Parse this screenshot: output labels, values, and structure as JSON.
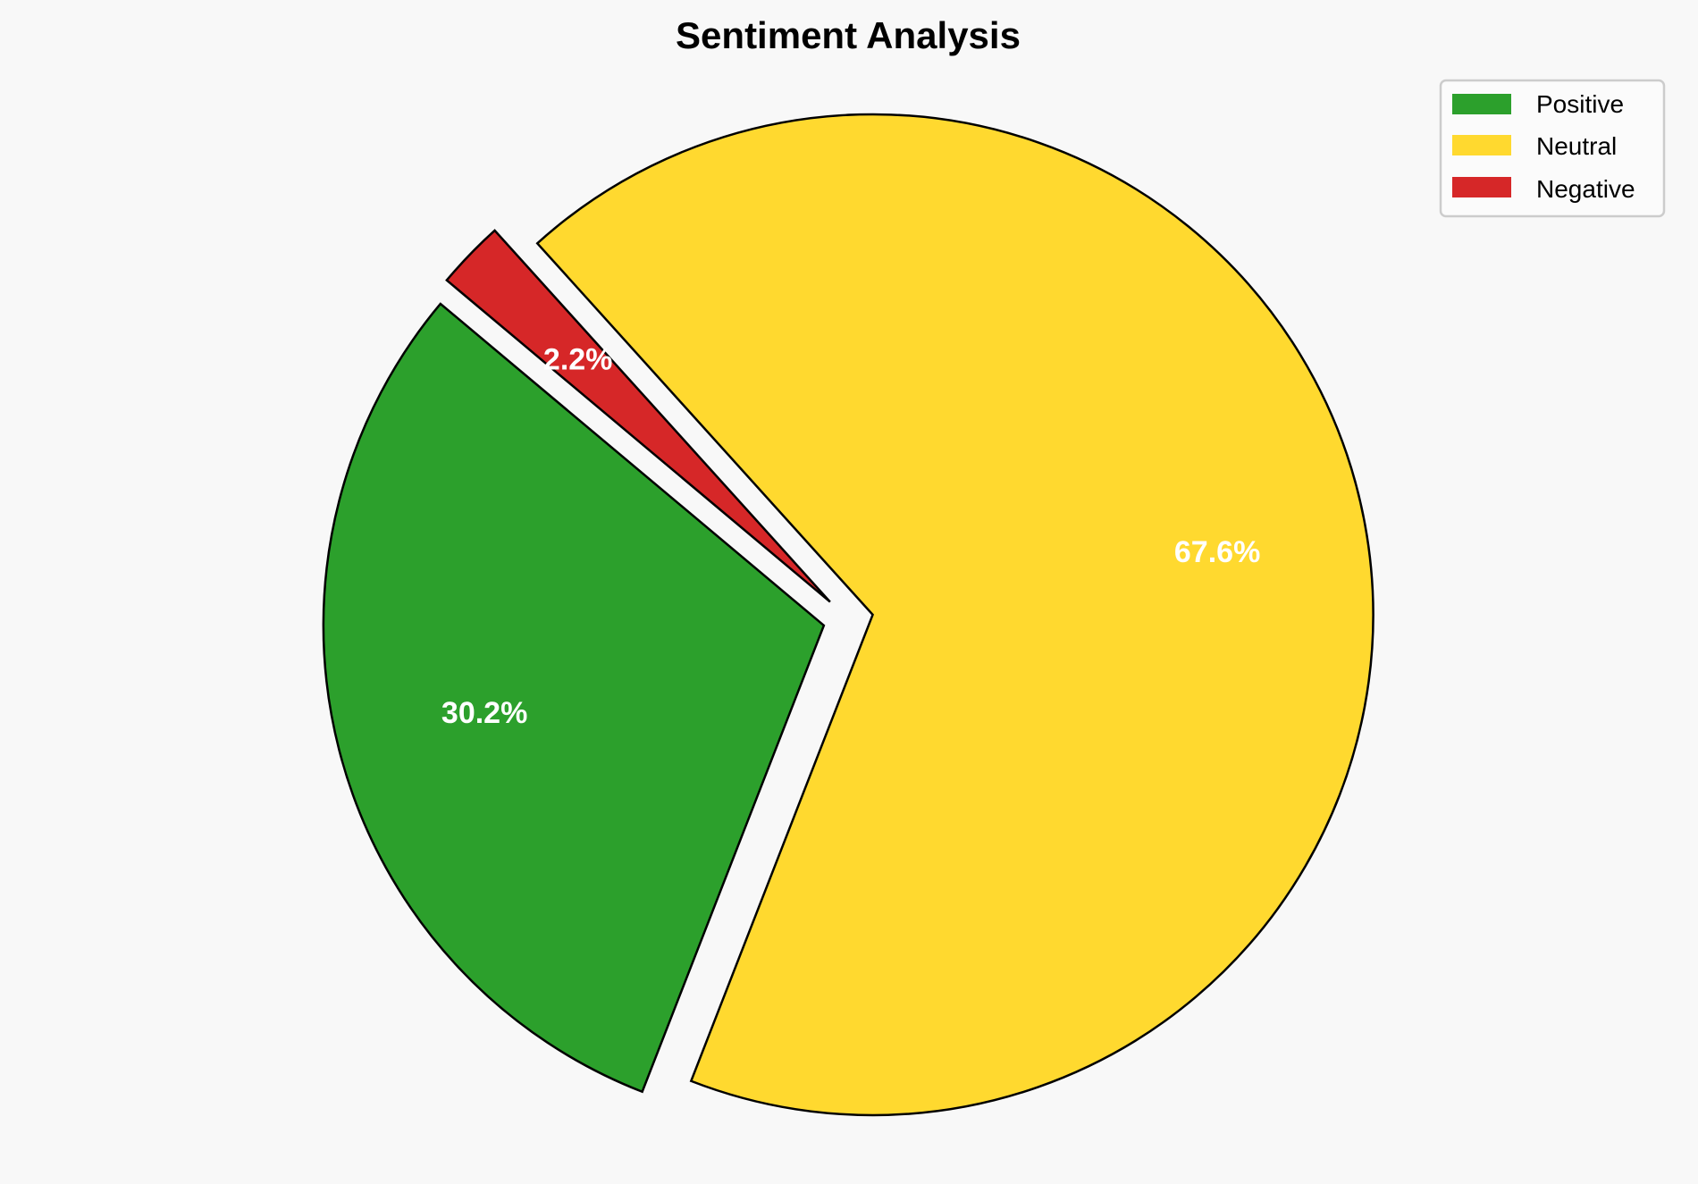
{
  "chart_data": {
    "type": "pie",
    "title": "Sentiment Analysis",
    "categories": [
      "Positive",
      "Neutral",
      "Negative"
    ],
    "values": [
      30.2,
      67.6,
      2.2
    ],
    "labels": [
      "30.2%",
      "67.6%",
      "2.2%"
    ],
    "colors": [
      "#2ca02c",
      "#ffd92f",
      "#d62728"
    ],
    "explode": [
      0.05,
      0.05,
      0.05
    ],
    "start_angle_deg": 140,
    "direction": "counterclockwise",
    "edge_color": "#000000",
    "label_color": "#ffffff",
    "legend": {
      "entries": [
        "Positive",
        "Neutral",
        "Negative"
      ],
      "placement": "top-right"
    }
  }
}
